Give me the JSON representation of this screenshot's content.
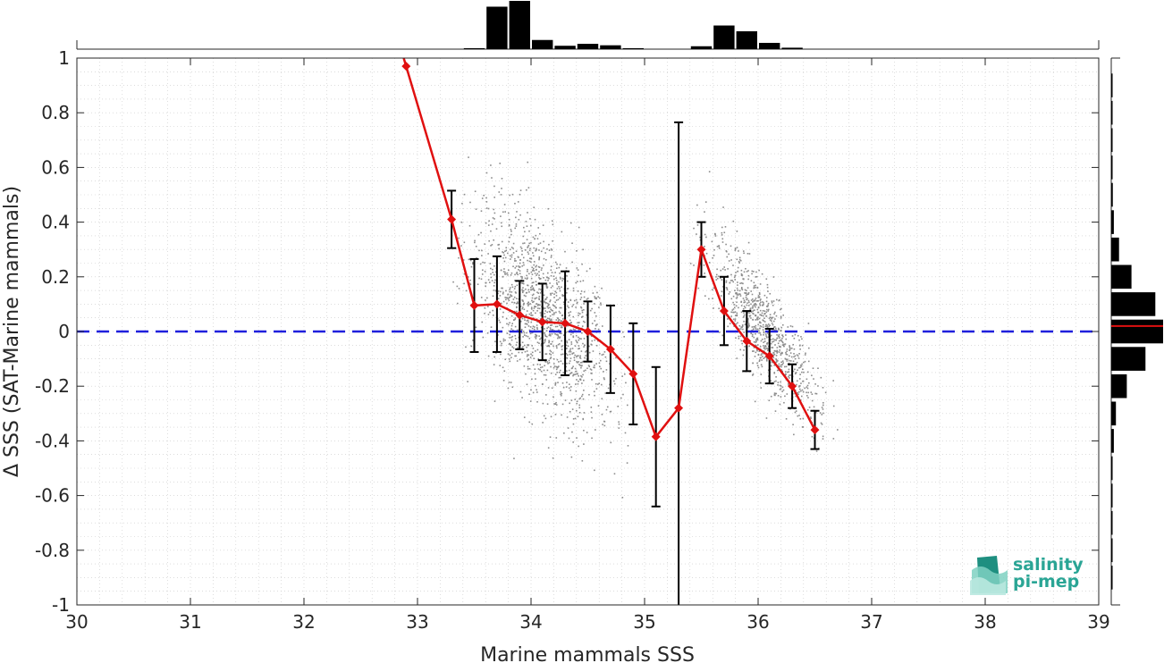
{
  "chart_data": {
    "type": "scatter",
    "title": "",
    "xlabel": "Marine mammals SSS",
    "ylabel": "Δ SSS (SAT-Marine mammals)",
    "xlim": [
      30,
      39
    ],
    "ylim": [
      -1,
      1
    ],
    "xticks": [
      "30",
      "31",
      "32",
      "33",
      "34",
      "35",
      "36",
      "37",
      "38",
      "39"
    ],
    "yticks": [
      "-1",
      "-0.8",
      "-0.6",
      "-0.4",
      "-0.2",
      "0",
      "0.2",
      "0.4",
      "0.6",
      "0.8",
      "1"
    ],
    "grid": "dotted minor grid",
    "reference_line": {
      "y": 0,
      "style": "dashed",
      "color": "#1f1fdc"
    },
    "binned_mean": {
      "color": "#e01010",
      "marker": "diamond",
      "x": [
        32.9,
        33.3,
        33.5,
        33.7,
        33.9,
        34.1,
        34.3,
        34.5,
        34.7,
        34.9,
        35.1,
        35.3,
        35.5,
        35.7,
        35.9,
        36.1,
        36.3,
        36.5
      ],
      "mean": [
        0.97,
        0.41,
        0.095,
        0.1,
        0.06,
        0.035,
        0.03,
        0.0,
        -0.065,
        -0.155,
        -0.385,
        -0.28,
        0.3,
        0.075,
        -0.035,
        -0.09,
        -0.2,
        -0.36
      ],
      "err": [
        null,
        0.105,
        0.17,
        0.175,
        0.125,
        0.14,
        0.19,
        0.11,
        0.16,
        0.185,
        0.255,
        1.045,
        0.1,
        0.125,
        0.11,
        0.1,
        0.08,
        0.07
      ]
    },
    "scatter_clusters": {
      "color": "#8c8c8c",
      "clusters": [
        {
          "x_range": [
            33.4,
            34.8
          ],
          "center_y": 0.05,
          "slope": -0.35,
          "spread": 0.16
        },
        {
          "x_range": [
            35.5,
            36.6
          ],
          "center_y": 0.0,
          "slope": -0.55,
          "spread": 0.09
        }
      ]
    },
    "top_histogram": {
      "bin_centers": [
        33.5,
        33.7,
        33.9,
        34.1,
        34.3,
        34.5,
        34.7,
        34.9,
        35.1,
        35.3,
        35.5,
        35.7,
        35.9,
        36.1,
        36.3,
        36.5
      ],
      "counts": [
        0.02,
        0.88,
        1.0,
        0.19,
        0.07,
        0.11,
        0.08,
        0.02,
        0.0,
        0.0,
        0.06,
        0.49,
        0.37,
        0.13,
        0.03,
        0.0
      ]
    },
    "right_histogram": {
      "bin_centers": [
        0.9,
        0.8,
        0.7,
        0.6,
        0.5,
        0.4,
        0.3,
        0.2,
        0.1,
        0.0,
        -0.1,
        -0.2,
        -0.3,
        -0.4,
        -0.5,
        -0.6,
        -0.7,
        -0.8,
        -0.9
      ],
      "counts": [
        0.02,
        0.02,
        0.01,
        0.01,
        0.03,
        0.05,
        0.15,
        0.39,
        0.85,
        1.0,
        0.66,
        0.3,
        0.09,
        0.05,
        0.02,
        0.01,
        0.01,
        0.01,
        0.01
      ],
      "mean_line": {
        "y": 0.02,
        "color": "#e01010"
      }
    }
  },
  "logo": {
    "line1": "salinity",
    "line2": "pi-mep"
  }
}
